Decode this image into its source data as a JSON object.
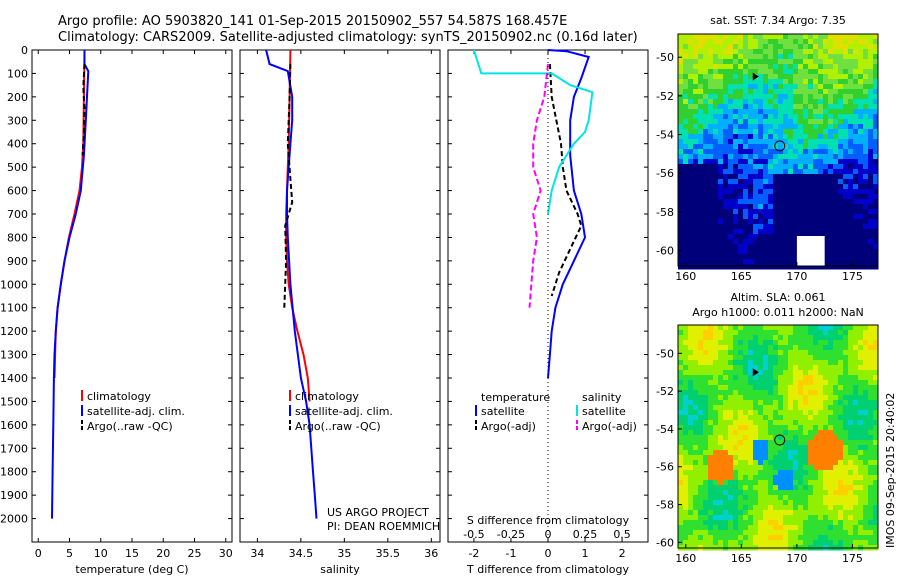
{
  "header": {
    "line1": "Argo profile: AO 5903820_141 01-Sep-2015 20150902_557 54.587S 168.457E",
    "line2": "Climatology: CARS2009. Satellite-adjusted climatology: synTS_20150902.nc (0.16d later)"
  },
  "watermark": "IMOS 09-Sep-2015 20:40:02",
  "credits": {
    "line1": "US ARGO PROJECT",
    "line2": "PI: DEAN ROEMMICH"
  },
  "colors": {
    "climatology": "#ff0000",
    "satellite_adj": "#0000ff",
    "argo": "#000000",
    "t_satellite": "#0000ff",
    "t_argo": "#000000",
    "s_satellite": "#00e5e5",
    "s_argo": "#ff00ff"
  },
  "chart_data": [
    {
      "id": "temperature",
      "type": "line",
      "xlabel": "temperature (deg C)",
      "ylabel": "",
      "xlim": [
        -1,
        31
      ],
      "ylim": [
        2100,
        0
      ],
      "xticks": [
        0,
        5,
        10,
        15,
        20,
        25,
        30
      ],
      "yticks": [
        0,
        100,
        200,
        300,
        400,
        500,
        600,
        700,
        800,
        900,
        1000,
        1100,
        1200,
        1300,
        1400,
        1500,
        1600,
        1700,
        1800,
        1900,
        2000
      ],
      "legend": [
        "climatology",
        "satellite-adj. clim.",
        "Argo(..raw -QC)"
      ],
      "legend_position": "lower-center",
      "series": [
        {
          "name": "climatology",
          "color_key": "climatology",
          "dash": "none",
          "x": [
            7.4,
            7.3,
            7.2,
            7.0,
            6.6,
            5.8,
            4.9,
            4.2,
            3.6,
            3.1,
            2.8,
            2.7,
            2.6
          ],
          "y": [
            0,
            200,
            400,
            500,
            600,
            700,
            800,
            900,
            1000,
            1100,
            1200,
            1300,
            1400
          ]
        },
        {
          "name": "satellite-adj. clim.",
          "color_key": "satellite_adj",
          "dash": "none",
          "x": [
            7.4,
            7.4,
            8.0,
            7.6,
            7.3,
            6.8,
            6.0,
            5.0,
            4.2,
            3.6,
            3.1,
            2.8,
            2.6,
            2.5,
            2.4,
            2.3,
            2.2
          ],
          "y": [
            0,
            60,
            90,
            300,
            450,
            600,
            700,
            800,
            900,
            1000,
            1100,
            1200,
            1300,
            1400,
            1600,
            1800,
            2000
          ]
        },
        {
          "name": "Argo(..raw -QC)",
          "color_key": "argo",
          "dash": "5,3",
          "x": [
            7.4,
            7.2,
            7.4,
            7.3,
            7.1
          ],
          "y": [
            60,
            160,
            250,
            350,
            450
          ]
        }
      ]
    },
    {
      "id": "salinity",
      "type": "line",
      "xlabel": "salinity",
      "ylabel": "",
      "xlim": [
        33.8,
        36.1
      ],
      "ylim": [
        2100,
        0
      ],
      "xticks": [
        34,
        34.5,
        35,
        35.5,
        36
      ],
      "xtick_labels": [
        "34",
        "34.5",
        "35",
        "35.5",
        "36"
      ],
      "legend": [
        "climatology",
        "satellite-adj. clim.",
        "Argo(..raw -QC)"
      ],
      "legend_position": "lower-center",
      "series": [
        {
          "name": "climatology",
          "color_key": "climatology",
          "dash": "none",
          "x": [
            34.38,
            34.37,
            34.36,
            34.35,
            34.34,
            34.33,
            34.33,
            34.34,
            34.36,
            34.4,
            34.46,
            34.53,
            34.58,
            34.6
          ],
          "y": [
            0,
            200,
            400,
            500,
            600,
            700,
            800,
            900,
            1000,
            1100,
            1200,
            1300,
            1400,
            1500
          ]
        },
        {
          "name": "satellite-adj. clim.",
          "color_key": "satellite_adj",
          "dash": "none",
          "x": [
            34.1,
            34.14,
            34.35,
            34.4,
            34.4,
            34.38,
            34.36,
            34.34,
            34.34,
            34.35,
            34.38,
            34.43,
            34.5,
            34.56,
            34.6,
            34.64,
            34.66,
            34.68
          ],
          "y": [
            0,
            60,
            90,
            200,
            300,
            400,
            500,
            600,
            700,
            800,
            1000,
            1200,
            1400,
            1500,
            1600,
            1800,
            1900,
            2000
          ]
        },
        {
          "name": "Argo(..raw -QC)",
          "color_key": "argo",
          "dash": "5,3",
          "x": [
            34.38,
            34.37,
            34.35,
            34.38,
            34.4,
            34.32,
            34.33,
            34.31
          ],
          "y": [
            60,
            200,
            400,
            550,
            650,
            750,
            900,
            1100
          ]
        }
      ]
    },
    {
      "id": "differences",
      "type": "line",
      "xlabel": "T difference from climatology",
      "x2label": "S difference from climatology",
      "xlim": [
        -2.7,
        2.7
      ],
      "ylim": [
        2100,
        0
      ],
      "xticks": [
        -2,
        -1,
        0,
        1,
        2
      ],
      "x2ticks": [
        -0.5,
        -0.25,
        0,
        0.25,
        0.5
      ],
      "x2tick_labels": [
        "-0.5",
        "-0.25",
        "0",
        "0.25",
        "0.5"
      ],
      "legend_left_title": "temperature",
      "legend_right_title": "salinity",
      "legend": [
        "satellite",
        "Argo(-adj)",
        "satellite",
        "Argo(-adj)"
      ],
      "legend_position": "lower-center",
      "series": [
        {
          "name": "T satellite",
          "color_key": "t_satellite",
          "dash": "none",
          "x": [
            0,
            0.5,
            1.1,
            0.9,
            0.7,
            0.6,
            0.6,
            0.7,
            0.9,
            1.0,
            0.7,
            0.4,
            0.2,
            0.1,
            0.05,
            0
          ],
          "y": [
            0,
            5,
            30,
            120,
            200,
            300,
            450,
            600,
            700,
            800,
            900,
            1000,
            1100,
            1200,
            1300,
            1400
          ]
        },
        {
          "name": "T Argo(-adj)",
          "color_key": "t_argo",
          "dash": "5,3",
          "x": [
            0.05,
            0.1,
            0.35,
            0.4,
            0.5,
            0.8,
            0.9,
            0.6,
            0.3,
            0.1
          ],
          "y": [
            60,
            200,
            400,
            500,
            600,
            700,
            750,
            850,
            950,
            1050
          ]
        },
        {
          "name": "S satellite",
          "color_key": "s_satellite",
          "dash": "none",
          "x": [
            -2.0,
            -1.8,
            0.1,
            0.6,
            1.2,
            1.1,
            1.0,
            0.7,
            0.5,
            0.3,
            0.1,
            0
          ],
          "y": [
            0,
            100,
            100,
            150,
            180,
            300,
            350,
            400,
            450,
            500,
            600,
            700
          ]
        },
        {
          "name": "S Argo(-adj)",
          "color_key": "s_argo",
          "dash": "6,3",
          "x": [
            0,
            -0.1,
            -0.3,
            -0.4,
            -0.4,
            -0.2,
            -0.4,
            -0.3,
            -0.4,
            -0.5
          ],
          "y": [
            60,
            200,
            300,
            400,
            500,
            600,
            700,
            800,
            900,
            1100
          ]
        }
      ]
    },
    {
      "id": "sst_map",
      "type": "heatmap",
      "title": "sat. SST: 7.34 Argo: 7.35",
      "xlim": [
        159.3,
        177.3
      ],
      "ylim": [
        -60.8,
        -48.8
      ],
      "xticks": [
        160,
        165,
        170,
        175
      ],
      "yticks": [
        -50,
        -52,
        -54,
        -56,
        -58,
        -60
      ],
      "marker": {
        "lon": 168.457,
        "lat": -54.587
      },
      "track": [
        {
          "lon": 166.3,
          "lat": -51.0
        }
      ],
      "palette": [
        "#00007a",
        "#0000c8",
        "#0060ff",
        "#00b0ff",
        "#00e0b0",
        "#30d030",
        "#70e040",
        "#b0f000",
        "#e0e000"
      ]
    },
    {
      "id": "sla_map",
      "type": "heatmap",
      "title": "Altim. SLA: 0.061",
      "subtitle": "Argo h1000: 0.011 h2000: NaN",
      "xlim": [
        159.3,
        177.3
      ],
      "ylim": [
        -60.3,
        -48.5
      ],
      "xticks": [
        160,
        165,
        170,
        175
      ],
      "yticks": [
        -50,
        -52,
        -54,
        -56,
        -58,
        -60
      ],
      "marker": {
        "lon": 168.457,
        "lat": -54.587
      },
      "track": [
        {
          "lon": 166.3,
          "lat": -51.0
        }
      ],
      "palette": [
        "#0090ff",
        "#00d0d0",
        "#00d070",
        "#30e030",
        "#90f000",
        "#e0f000",
        "#ffd000",
        "#ff8000"
      ]
    }
  ]
}
